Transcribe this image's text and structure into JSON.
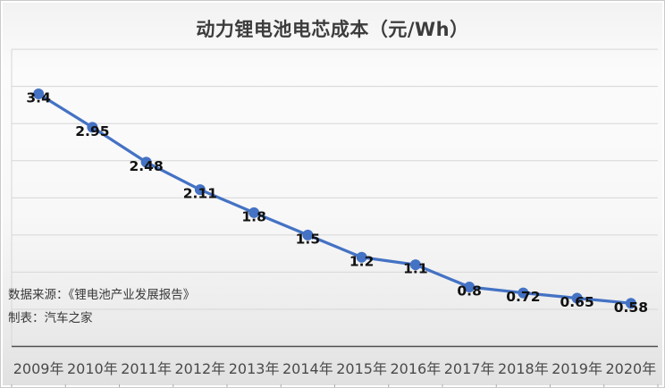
{
  "header": {
    "title": "动力锂电池电芯成本（元/Wh）"
  },
  "footer": {
    "source_line": "数据来源：《锂电池产业发展报告》",
    "credit_line": "制表：汽车之家"
  },
  "colors": {
    "line": "#4472c4",
    "marker": "#4472c4",
    "grid": "#d6d6d6",
    "axis": "#4f4f4f",
    "tick": "#a8a8a8",
    "data_label": "#111111",
    "x_label": "#4a4a4a",
    "title": "#3c3c3c"
  },
  "chart_data": {
    "type": "line",
    "title": "动力锂电池电芯成本（元/Wh）",
    "categories": [
      "2009年",
      "2010年",
      "2011年",
      "2012年",
      "2013年",
      "2014年",
      "2015年",
      "2016年",
      "2017年",
      "2018年",
      "2019年",
      "2020年"
    ],
    "values": [
      3.4,
      2.95,
      2.48,
      2.11,
      1.8,
      1.5,
      1.2,
      1.1,
      0.8,
      0.72,
      0.65,
      0.58
    ],
    "data_labels": [
      "3.4",
      "2.95",
      "2.48",
      "2.11",
      "1.8",
      "1.5",
      "1.2",
      "1.1",
      "0.8",
      "0.72",
      "0.65",
      "0.58"
    ],
    "xlabel": "",
    "ylabel": "",
    "ylim": [
      0,
      4
    ],
    "ytick_step": 0.5,
    "y_axis_labels_visible": false,
    "grid": true,
    "legend": "none",
    "marker": "circle",
    "annotations": [
      "数据来源：《锂电池产业发展报告》",
      "制表：汽车之家"
    ]
  }
}
